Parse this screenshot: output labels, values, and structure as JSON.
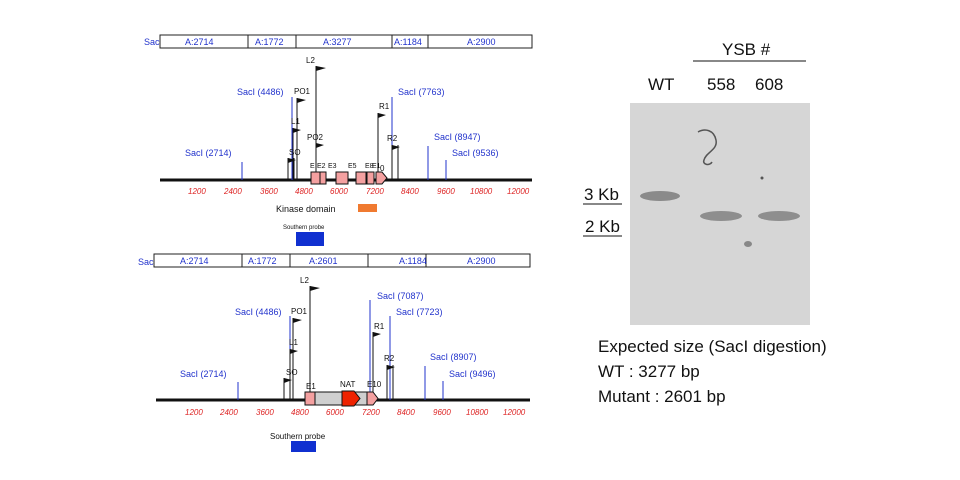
{
  "top_map": {
    "header_site": "SacI",
    "segments": [
      "A:2714",
      "A:1772",
      "A:3277",
      "A:1184",
      "A:2900"
    ],
    "sites": [
      "SacI (4486)",
      "SacI (7763)",
      "SacI (2714)",
      "SacI (8947)",
      "SacI (9536)"
    ],
    "primers": [
      "L2",
      "PO1",
      "L1",
      "PO2",
      "SO",
      "R1",
      "R2",
      "0"
    ],
    "exons": [
      "E",
      "E2",
      "E3",
      "E5",
      "E8",
      "E1"
    ],
    "ticks": [
      "1200",
      "2400",
      "3600",
      "4800",
      "6000",
      "7200",
      "8400",
      "9600",
      "10800",
      "12000"
    ],
    "kinase_label": "Kinase domain",
    "probe_label": "Southern probe"
  },
  "bottom_map": {
    "header_site": "SacI",
    "segments": [
      "A:2714",
      "A:1772",
      "A:2601",
      "A:1184",
      "A:2900"
    ],
    "sites": [
      "SacI (7087)",
      "SacI (4486)",
      "SacI (7723)",
      "SacI (2714)",
      "SacI (8907)",
      "SacI (9496)"
    ],
    "primers": [
      "L2",
      "PO1",
      "L1",
      "SO",
      "R1",
      "R2"
    ],
    "features": [
      "E1",
      "NAT",
      "E10"
    ],
    "ticks": [
      "1200",
      "2400",
      "3600",
      "4800",
      "6000",
      "7200",
      "8400",
      "9600",
      "10800",
      "12000"
    ],
    "probe_label": "Southern probe"
  },
  "gel": {
    "ysb_header": "YSB #",
    "lanes": [
      "WT",
      "558",
      "608"
    ],
    "markers": [
      "3 Kb",
      "2 Kb"
    ]
  },
  "expected": {
    "title": "Expected size (SacI digestion)",
    "wt": "WT : 3277 bp",
    "mutant": "Mutant : 2601  bp"
  },
  "colors": {
    "site_blue": "#2233cc",
    "tick_red": "#dd2222",
    "exon_pink": "#f4a0a0",
    "kinase_orange": "#f07a30",
    "probe_blue": "#1030d0",
    "nat_red": "#ee2200"
  }
}
